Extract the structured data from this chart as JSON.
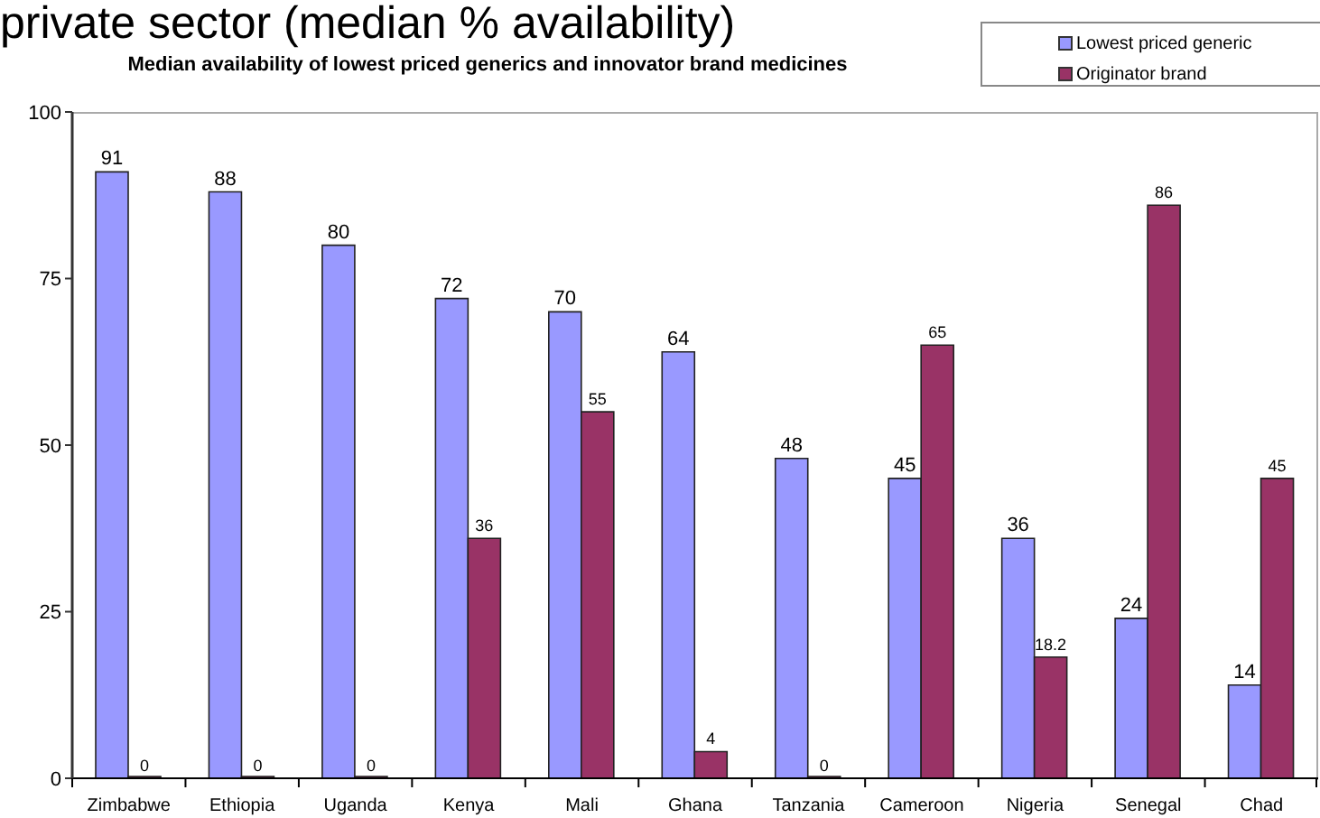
{
  "chart_data": {
    "type": "bar",
    "title": "private sector (median % availability)",
    "subtitle": "Median availability of lowest priced generics and innovator brand medicines",
    "categories": [
      "Zimbabwe",
      "Ethiopia",
      "Uganda",
      "Kenya",
      "Mali",
      "Ghana",
      "Tanzania",
      "Cameroon",
      "Nigeria",
      "Senegal",
      "Chad"
    ],
    "series": [
      {
        "name": "Lowest priced generic",
        "color": "#9999ff",
        "values": [
          91,
          88,
          80,
          72,
          70,
          64,
          48,
          45,
          36,
          24,
          14
        ]
      },
      {
        "name": "Originator brand",
        "color": "#993366",
        "values": [
          0,
          0,
          0,
          36,
          55,
          4,
          0,
          65,
          18.2,
          86,
          45
        ]
      }
    ],
    "ylim": [
      0,
      100
    ],
    "yticks": [
      0,
      25,
      50,
      75,
      100
    ],
    "data_labels": true,
    "legend": "top right"
  }
}
